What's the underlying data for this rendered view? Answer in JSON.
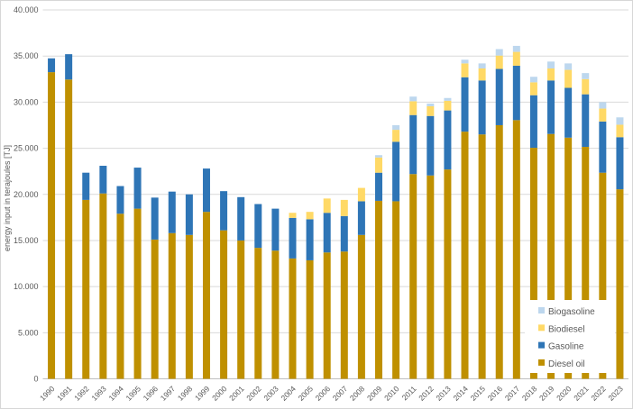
{
  "chart": {
    "background": "#ffffff",
    "border_color": "#d7d7d7",
    "gridline_color": "#d9d9d9",
    "axis_line_color": "#bfbfbf",
    "label_color": "#595959"
  },
  "chart_data": {
    "type": "bar",
    "stacked": true,
    "title": "",
    "xlabel": "",
    "ylabel": "energy input in terajoules [TJ]",
    "ylim": [
      0,
      40000
    ],
    "ytick_step": 5000,
    "ytick_labels": [
      "0",
      "5.000",
      "10.000",
      "15.000",
      "20.000",
      "25.000",
      "30.000",
      "35.000",
      "40.000"
    ],
    "grid": true,
    "legend_position": "bottom-right",
    "legend_order": [
      "Biogasoline",
      "Biodiesel",
      "Gasoline",
      "Diesel oil"
    ],
    "categories": [
      "1990",
      "1991",
      "1992",
      "1993",
      "1994",
      "1995",
      "1996",
      "1997",
      "1998",
      "1999",
      "2000",
      "2001",
      "2002",
      "2003",
      "2004",
      "2005",
      "2006",
      "2007",
      "2008",
      "2009",
      "2010",
      "2011",
      "2012",
      "2013",
      "2014",
      "2015",
      "2016",
      "2017",
      "2018",
      "2019",
      "2020",
      "2021",
      "2022",
      "2023"
    ],
    "series": [
      {
        "name": "Diesel oil",
        "color": "#BF9000",
        "values": [
          33250,
          32450,
          19400,
          20100,
          17900,
          18450,
          15100,
          15800,
          15600,
          18100,
          16100,
          15000,
          14200,
          13900,
          13050,
          12850,
          13700,
          13800,
          15600,
          19300,
          19250,
          22200,
          22050,
          22700,
          26800,
          26500,
          27500,
          28050,
          25050,
          26550,
          26150,
          25150,
          22350,
          20550
        ]
      },
      {
        "name": "Gasoline",
        "color": "#2E75B6",
        "values": [
          1500,
          2750,
          2950,
          3000,
          3000,
          4450,
          4550,
          4500,
          4400,
          4700,
          4250,
          4700,
          4750,
          4550,
          4400,
          4450,
          4300,
          3850,
          3650,
          3050,
          6450,
          6400,
          6450,
          6400,
          5900,
          5850,
          6100,
          5900,
          5700,
          5800,
          5400,
          5700,
          5550,
          5650
        ]
      },
      {
        "name": "Biodiesel",
        "color": "#FFD966",
        "values": [
          0,
          0,
          0,
          0,
          0,
          0,
          0,
          0,
          0,
          0,
          0,
          0,
          0,
          0,
          550,
          800,
          1550,
          1750,
          1450,
          1650,
          1300,
          1500,
          1050,
          1050,
          1500,
          1300,
          1450,
          1500,
          1400,
          1300,
          1950,
          1650,
          1400,
          1350
        ]
      },
      {
        "name": "Biogasoline",
        "color": "#BDD7EE",
        "values": [
          0,
          0,
          0,
          0,
          0,
          0,
          0,
          0,
          0,
          0,
          0,
          0,
          0,
          0,
          0,
          0,
          0,
          0,
          0,
          250,
          500,
          500,
          300,
          300,
          400,
          550,
          700,
          650,
          600,
          750,
          700,
          650,
          700,
          800
        ]
      }
    ]
  }
}
